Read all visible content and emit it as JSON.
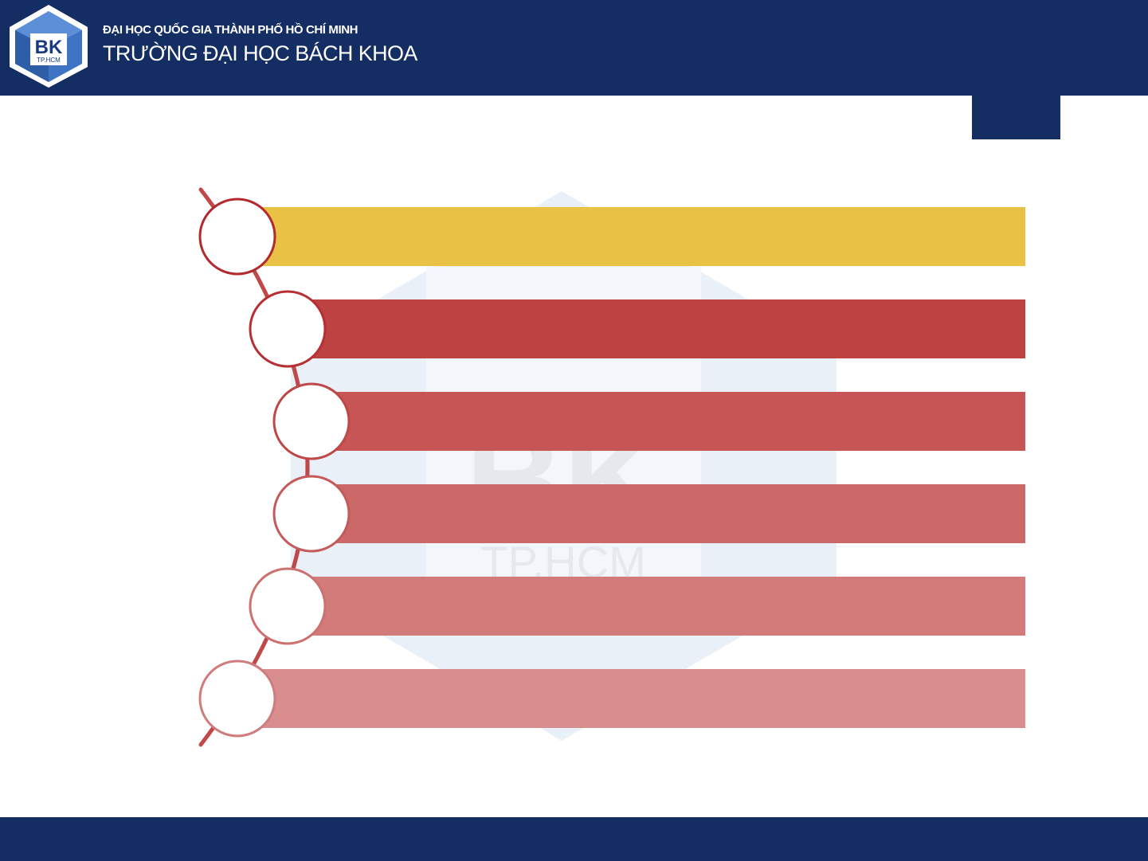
{
  "header": {
    "logo_text": "BK",
    "logo_subtext": "TP.HCM",
    "university_parent": "ĐẠI HỌC QUỐC GIA THÀNH PHỐ HỒ CHÍ MINH",
    "university_name": "TRƯỜNG ĐẠI HỌC BÁCH KHOA",
    "bar_color": "#142d62"
  },
  "watermark": {
    "text": "BK",
    "subtext": "TP.HCM"
  },
  "list_items": [
    {
      "label": "",
      "bar_color": "#e8bf3e",
      "ring_color": "#b22a2e"
    },
    {
      "label": "",
      "bar_color": "#bb3c3c",
      "ring_color": "#b72f33"
    },
    {
      "label": "",
      "bar_color": "#c55050",
      "ring_color": "#bf4747"
    },
    {
      "label": "",
      "bar_color": "#c96363",
      "ring_color": "#c45a5a"
    },
    {
      "label": "",
      "bar_color": "#d27676",
      "ring_color": "#cd7070"
    },
    {
      "label": "",
      "bar_color": "#d78a8a",
      "ring_color": "#d07c7c"
    }
  ],
  "connector_color": "#c04848"
}
